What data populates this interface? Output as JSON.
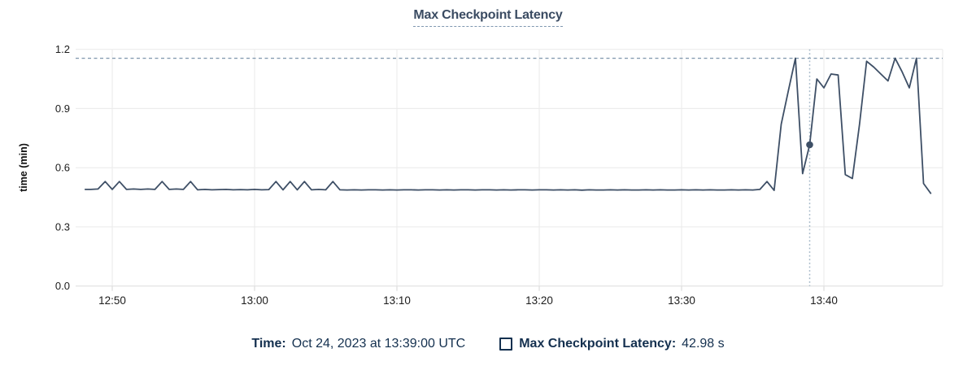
{
  "title": "Max Checkpoint Latency",
  "y_axis": {
    "title": "time (min)"
  },
  "readout": {
    "time_label": "Time:",
    "time_value": "Oct 24, 2023 at 13:39:00 UTC",
    "series_label": "Max Checkpoint Latency:",
    "series_value": "42.98 s"
  },
  "colors": {
    "line": "#3e4f66",
    "title_text": "#3a4b62",
    "title_underline": "#7f97b0",
    "readout_text": "#14304f",
    "grid": "#ececec",
    "axis_line": "#e0e0e0",
    "tick_stub": "#d9d9d9",
    "max_dash_line": "#7e96ac",
    "cursor_line": "#a5b8c8",
    "tick_text": "#1c1c1c"
  },
  "chart_data": {
    "type": "line",
    "title": "Max Checkpoint Latency",
    "xlabel": "",
    "ylabel": "time (min)",
    "ylim": [
      0,
      1.2
    ],
    "grid": true,
    "legend_position": "bottom",
    "x_unit": "minutes after 12:00 UTC on Oct 24, 2023",
    "y_ticks": [
      {
        "v": 0.0,
        "label": "0.0"
      },
      {
        "v": 0.3,
        "label": "0.3"
      },
      {
        "v": 0.6,
        "label": "0.6"
      },
      {
        "v": 0.9,
        "label": "0.9"
      },
      {
        "v": 1.2,
        "label": "1.2"
      }
    ],
    "x_ticks": [
      {
        "m": 50,
        "label": "12:50"
      },
      {
        "m": 60,
        "label": "13:00"
      },
      {
        "m": 70,
        "label": "13:10"
      },
      {
        "m": 80,
        "label": "13:20"
      },
      {
        "m": 90,
        "label": "13:30"
      },
      {
        "m": 100,
        "label": "13:40"
      }
    ],
    "annotations": {
      "max_dashed_line_value": 1.155,
      "cursor": {
        "m": 99,
        "time": "13:39:00 UTC",
        "value_seconds": 42.98,
        "value_min": 0.7163
      }
    },
    "series": [
      {
        "name": "Max Checkpoint Latency",
        "unit": "min",
        "points": [
          [
            48.1,
            0.49
          ],
          [
            48.5,
            0.49
          ],
          [
            49,
            0.492
          ],
          [
            49.5,
            0.53
          ],
          [
            50,
            0.49
          ],
          [
            50.5,
            0.53
          ],
          [
            51,
            0.49
          ],
          [
            51.5,
            0.492
          ],
          [
            52,
            0.49
          ],
          [
            52.5,
            0.492
          ],
          [
            53,
            0.49
          ],
          [
            53.5,
            0.53
          ],
          [
            54,
            0.49
          ],
          [
            54.5,
            0.492
          ],
          [
            55,
            0.49
          ],
          [
            55.5,
            0.53
          ],
          [
            56,
            0.488
          ],
          [
            56.5,
            0.49
          ],
          [
            57,
            0.488
          ],
          [
            57.5,
            0.489
          ],
          [
            58,
            0.49
          ],
          [
            58.5,
            0.488
          ],
          [
            59,
            0.489
          ],
          [
            59.5,
            0.488
          ],
          [
            60,
            0.49
          ],
          [
            60.5,
            0.488
          ],
          [
            61,
            0.489
          ],
          [
            61.5,
            0.53
          ],
          [
            62,
            0.488
          ],
          [
            62.5,
            0.53
          ],
          [
            63,
            0.488
          ],
          [
            63.5,
            0.53
          ],
          [
            64,
            0.488
          ],
          [
            64.5,
            0.49
          ],
          [
            65,
            0.488
          ],
          [
            65.5,
            0.53
          ],
          [
            66,
            0.488
          ],
          [
            66.5,
            0.487
          ],
          [
            67,
            0.488
          ],
          [
            67.5,
            0.487
          ],
          [
            68,
            0.488
          ],
          [
            68.5,
            0.488
          ],
          [
            69,
            0.487
          ],
          [
            69.5,
            0.488
          ],
          [
            70,
            0.487
          ],
          [
            70.5,
            0.488
          ],
          [
            71,
            0.488
          ],
          [
            71.5,
            0.487
          ],
          [
            72,
            0.488
          ],
          [
            72.5,
            0.488
          ],
          [
            73,
            0.487
          ],
          [
            73.5,
            0.488
          ],
          [
            74,
            0.487
          ],
          [
            74.5,
            0.488
          ],
          [
            75,
            0.488
          ],
          [
            75.5,
            0.487
          ],
          [
            76,
            0.488
          ],
          [
            76.5,
            0.488
          ],
          [
            77,
            0.487
          ],
          [
            77.5,
            0.488
          ],
          [
            78,
            0.487
          ],
          [
            78.5,
            0.488
          ],
          [
            79,
            0.488
          ],
          [
            79.5,
            0.487
          ],
          [
            80,
            0.488
          ],
          [
            80.5,
            0.488
          ],
          [
            81,
            0.487
          ],
          [
            81.5,
            0.488
          ],
          [
            82,
            0.487
          ],
          [
            82.5,
            0.488
          ],
          [
            83,
            0.486
          ],
          [
            83.5,
            0.488
          ],
          [
            84,
            0.487
          ],
          [
            84.5,
            0.487
          ],
          [
            85,
            0.488
          ],
          [
            85.5,
            0.487
          ],
          [
            86,
            0.488
          ],
          [
            86.5,
            0.487
          ],
          [
            87,
            0.487
          ],
          [
            87.5,
            0.488
          ],
          [
            88,
            0.487
          ],
          [
            88.5,
            0.488
          ],
          [
            89,
            0.487
          ],
          [
            89.5,
            0.487
          ],
          [
            90,
            0.488
          ],
          [
            90.5,
            0.487
          ],
          [
            91,
            0.488
          ],
          [
            91.5,
            0.487
          ],
          [
            92,
            0.488
          ],
          [
            92.5,
            0.487
          ],
          [
            93,
            0.487
          ],
          [
            93.5,
            0.488
          ],
          [
            94,
            0.487
          ],
          [
            94.5,
            0.488
          ],
          [
            95,
            0.487
          ],
          [
            95.5,
            0.49
          ],
          [
            96,
            0.53
          ],
          [
            96.5,
            0.485
          ],
          [
            97,
            0.82
          ],
          [
            97.5,
            0.99
          ],
          [
            98,
            1.155
          ],
          [
            98.5,
            0.57
          ],
          [
            99,
            0.7163
          ],
          [
            99.5,
            1.05
          ],
          [
            100,
            1.005
          ],
          [
            100.5,
            1.075
          ],
          [
            101,
            1.07
          ],
          [
            101.5,
            0.565
          ],
          [
            102,
            0.545
          ],
          [
            102.5,
            0.82
          ],
          [
            103,
            1.14
          ],
          [
            103.5,
            1.11
          ],
          [
            104,
            1.075
          ],
          [
            104.5,
            1.04
          ],
          [
            105,
            1.155
          ],
          [
            105.5,
            1.085
          ],
          [
            106,
            1.005
          ],
          [
            106.5,
            1.155
          ],
          [
            107,
            0.52
          ],
          [
            107.5,
            0.47
          ]
        ]
      }
    ]
  }
}
